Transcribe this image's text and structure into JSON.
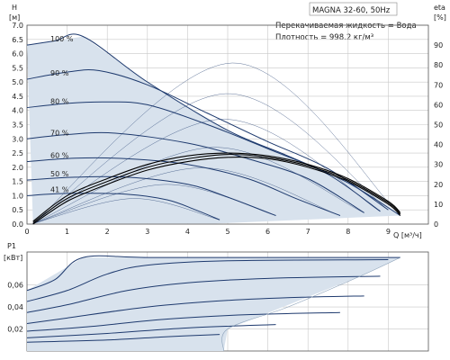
{
  "chart_data": [
    {
      "type": "line",
      "title": "MAGNA 32-60, 50Hz",
      "info_lines": [
        "Перекачиваемая жидкость = Вода",
        "Плотность = 998.2 кг/м³"
      ],
      "y_label_top": "H",
      "y_unit": "[м]",
      "x_label": "Q [м³/ч]",
      "y2_label_top": "eta",
      "y2_unit": "[%]",
      "xlim": [
        0,
        10
      ],
      "ylim": [
        0,
        7
      ],
      "y2lim": [
        0,
        100
      ],
      "x_ticks": [
        0,
        1,
        2,
        3,
        4,
        5,
        6,
        7,
        8,
        9
      ],
      "y_ticks": [
        "0.0",
        "0.5",
        "1.0",
        "1.5",
        "2.0",
        "2.5",
        "3.0",
        "3.5",
        "4.0",
        "4.5",
        "5.0",
        "5.5",
        "6.0",
        "6.5",
        "7.0"
      ],
      "y2_ticks": [
        0,
        10,
        20,
        30,
        40,
        50,
        60,
        70,
        80,
        90
      ],
      "grid": true,
      "curve_color": "#1e3a6e",
      "area_color": "#d8e2ed",
      "envelope": [
        [
          0,
          6.3
        ],
        [
          1.4,
          6.6
        ],
        [
          3.0,
          5.0
        ],
        [
          5.0,
          3.3
        ],
        [
          7.0,
          2.1
        ],
        [
          8.5,
          1.2
        ],
        [
          9.3,
          0.3
        ],
        [
          4.7,
          0.02
        ],
        [
          0.15,
          0.02
        ]
      ],
      "series": [
        {
          "label": "100 %",
          "points": [
            [
              0,
              6.3
            ],
            [
              0.7,
              6.45
            ],
            [
              1.4,
              6.6
            ],
            [
              3.0,
              5.0
            ],
            [
              5.0,
              3.3
            ],
            [
              6.5,
              2.4
            ],
            [
              8.0,
              1.45
            ],
            [
              9.3,
              0.3
            ]
          ]
        },
        {
          "label": "90 %",
          "points": [
            [
              0,
              5.1
            ],
            [
              1.0,
              5.35
            ],
            [
              1.8,
              5.4
            ],
            [
              3.0,
              4.9
            ],
            [
              4.5,
              3.9
            ],
            [
              6.0,
              2.9
            ],
            [
              7.5,
              1.95
            ],
            [
              9.0,
              0.5
            ]
          ]
        },
        {
          "label": "80 %",
          "points": [
            [
              0,
              4.1
            ],
            [
              1.0,
              4.25
            ],
            [
              2.0,
              4.3
            ],
            [
              3.0,
              4.2
            ],
            [
              4.5,
              3.5
            ],
            [
              6.0,
              2.65
            ],
            [
              7.5,
              1.75
            ],
            [
              8.8,
              0.45
            ]
          ]
        },
        {
          "label": "70 %",
          "points": [
            [
              0,
              3.0
            ],
            [
              1.0,
              3.15
            ],
            [
              2.2,
              3.2
            ],
            [
              4.0,
              2.85
            ],
            [
              5.5,
              2.3
            ],
            [
              7.0,
              1.6
            ],
            [
              8.4,
              0.4
            ]
          ]
        },
        {
          "label": "60 %",
          "points": [
            [
              0,
              2.2
            ],
            [
              1.2,
              2.32
            ],
            [
              2.5,
              2.3
            ],
            [
              4.0,
              2.1
            ],
            [
              5.5,
              1.6
            ],
            [
              6.7,
              0.9
            ],
            [
              7.8,
              0.3
            ]
          ]
        },
        {
          "label": "50 %",
          "points": [
            [
              0,
              1.55
            ],
            [
              1.2,
              1.65
            ],
            [
              2.5,
              1.65
            ],
            [
              4.0,
              1.4
            ],
            [
              5.0,
              0.95
            ],
            [
              6.2,
              0.3
            ]
          ]
        },
        {
          "label": "41 %",
          "points": [
            [
              0,
              1.0
            ],
            [
              1.0,
              1.08
            ],
            [
              2.5,
              1.05
            ],
            [
              3.5,
              0.85
            ],
            [
              4.2,
              0.5
            ],
            [
              4.8,
              0.15
            ]
          ]
        }
      ],
      "efficiency_curves": [
        {
          "points": [
            [
              0.15,
              0.1
            ],
            [
              1.0,
              1.0
            ],
            [
              2.0,
              1.6
            ],
            [
              3.0,
              2.1
            ],
            [
              4.0,
              2.4
            ],
            [
              5.0,
              2.5
            ],
            [
              6.0,
              2.4
            ],
            [
              7.0,
              2.1
            ],
            [
              8.0,
              1.6
            ],
            [
              9.0,
              0.8
            ],
            [
              9.3,
              0.4
            ]
          ]
        },
        {
          "points": [
            [
              0.15,
              0.05
            ],
            [
              1.0,
              0.9
            ],
            [
              2.0,
              1.5
            ],
            [
              3.0,
              2.0
            ],
            [
              4.0,
              2.3
            ],
            [
              5.0,
              2.45
            ],
            [
              6.0,
              2.35
            ],
            [
              7.0,
              2.05
            ],
            [
              8.0,
              1.55
            ],
            [
              9.0,
              0.75
            ],
            [
              9.3,
              0.35
            ]
          ]
        },
        {
          "points": [
            [
              0.15,
              0.0
            ],
            [
              1.0,
              0.8
            ],
            [
              2.0,
              1.4
            ],
            [
              3.0,
              1.9
            ],
            [
              4.0,
              2.2
            ],
            [
              5.0,
              2.35
            ],
            [
              6.0,
              2.3
            ],
            [
              7.0,
              2.0
            ],
            [
              8.0,
              1.5
            ],
            [
              9.0,
              0.7
            ],
            [
              9.3,
              0.3
            ]
          ]
        }
      ]
    },
    {
      "type": "line",
      "y_label_top": "P1",
      "y_unit": "[кВт]",
      "xlim": [
        0,
        10
      ],
      "ylim": [
        0,
        0.09
      ],
      "y_ticks": [
        "0,02",
        "0,04",
        "0,06"
      ],
      "y_tick_values": [
        0.02,
        0.04,
        0.06
      ],
      "grid": true,
      "curve_color": "#1e3a6e",
      "area_color": "#d8e2ed",
      "envelope": [
        [
          0,
          0.055
        ],
        [
          1.4,
          0.085
        ],
        [
          9.3,
          0.085
        ],
        [
          8.3,
          0.068
        ],
        [
          5.0,
          0.02
        ],
        [
          4.9,
          0.0
        ],
        [
          0,
          0.0
        ]
      ],
      "series": [
        {
          "label": "100 %",
          "points": [
            [
              0,
              0.055
            ],
            [
              0.7,
              0.065
            ],
            [
              1.4,
              0.085
            ],
            [
              3.0,
              0.085
            ],
            [
              6.0,
              0.085
            ],
            [
              9.3,
              0.085
            ]
          ]
        },
        {
          "label": "90 %",
          "points": [
            [
              0,
              0.045
            ],
            [
              1.0,
              0.055
            ],
            [
              2.0,
              0.07
            ],
            [
              3.0,
              0.078
            ],
            [
              5.0,
              0.082
            ],
            [
              9.0,
              0.083
            ]
          ]
        },
        {
          "label": "80 %",
          "points": [
            [
              0,
              0.035
            ],
            [
              1.0,
              0.042
            ],
            [
              2.5,
              0.055
            ],
            [
              4.0,
              0.062
            ],
            [
              6.0,
              0.066
            ],
            [
              8.8,
              0.068
            ]
          ]
        },
        {
          "label": "70 %",
          "points": [
            [
              0,
              0.025
            ],
            [
              1.0,
              0.03
            ],
            [
              3.0,
              0.04
            ],
            [
              5.0,
              0.046
            ],
            [
              7.0,
              0.049
            ],
            [
              8.4,
              0.05
            ]
          ]
        },
        {
          "label": "60 %",
          "points": [
            [
              0,
              0.018
            ],
            [
              1.5,
              0.022
            ],
            [
              3.5,
              0.029
            ],
            [
              5.5,
              0.033
            ],
            [
              7.8,
              0.035
            ]
          ]
        },
        {
          "label": "50 %",
          "points": [
            [
              0,
              0.012
            ],
            [
              2.0,
              0.016
            ],
            [
              4.0,
              0.021
            ],
            [
              6.2,
              0.024
            ]
          ]
        },
        {
          "label": "41 %",
          "points": [
            [
              0,
              0.008
            ],
            [
              2.0,
              0.01
            ],
            [
              3.5,
              0.013
            ],
            [
              4.8,
              0.015
            ]
          ]
        }
      ]
    }
  ]
}
